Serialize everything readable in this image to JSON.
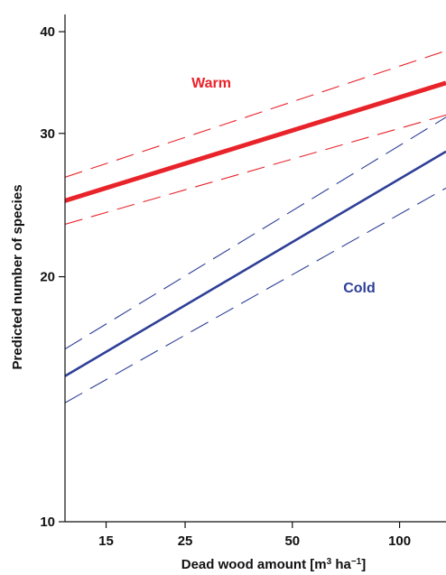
{
  "chart_data": {
    "type": "line",
    "xlabel": "Dead wood amount",
    "xlabel_unit_prefix": "[m",
    "xlabel_unit_exp1": "3",
    "xlabel_unit_mid": " ha",
    "xlabel_unit_exp2": "−1",
    "xlabel_unit_suffix": "]",
    "ylabel": "Predicted number of species",
    "x_scale": "log",
    "y_scale": "log",
    "xlim": [
      11.5,
      135
    ],
    "ylim": [
      10,
      42
    ],
    "xticks": [
      15,
      25,
      50,
      100
    ],
    "xtick_labels": [
      "15",
      "25",
      "50",
      "100"
    ],
    "yticks": [
      10,
      20,
      30,
      40
    ],
    "ytick_labels": [
      "10",
      "20",
      "30",
      "40"
    ],
    "grid": false,
    "legend": "none",
    "series": [
      {
        "name": "Warm",
        "color": "#e8232a",
        "x": [
          11.5,
          135
        ],
        "y": [
          24.8,
          34.6
        ],
        "lower": [
          23.2,
          31.6
        ],
        "upper": [
          26.5,
          37.9
        ]
      },
      {
        "name": "Cold",
        "color": "#2e3f97",
        "x": [
          11.5,
          135
        ],
        "y": [
          15.1,
          28.5
        ],
        "lower": [
          14.0,
          25.7
        ],
        "upper": [
          16.3,
          31.4
        ]
      }
    ]
  }
}
